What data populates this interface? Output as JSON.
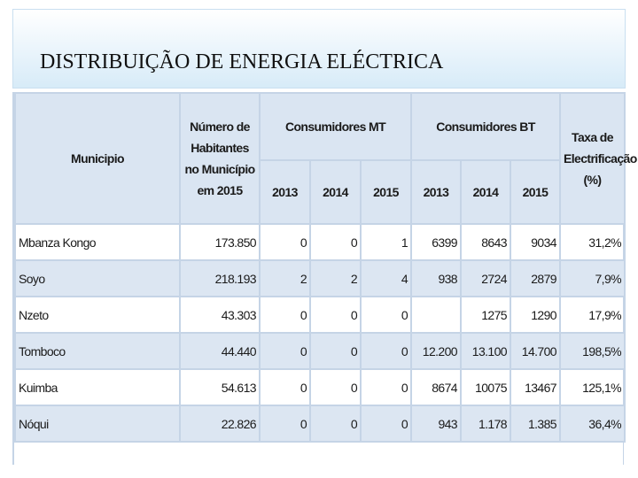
{
  "header": {
    "title": "DISTRIBUIÇÃO DE ENERGIA ELÉCTRICA"
  },
  "table": {
    "columns": {
      "municipio": "Municipio",
      "habitantes": "Número de Habitantes no Município em 2015",
      "mt": "Consumidores MT",
      "bt": "Consumidores BT",
      "taxa": "Taxa de Electrificação (%)",
      "years_mt": [
        "2013",
        "2014",
        "2015"
      ],
      "years_bt": [
        "2013",
        "2014",
        "2015"
      ]
    },
    "rows": [
      [
        "Mbanza Kongo",
        "173.850",
        "0",
        "0",
        "1",
        "6399",
        "8643",
        "9034",
        "31,2%"
      ],
      [
        "Soyo",
        "218.193",
        "2",
        "2",
        "4",
        "938",
        "2724",
        "2879",
        "7,9%"
      ],
      [
        "Nzeto",
        "43.303",
        "0",
        "0",
        "0",
        null,
        "1275",
        "1290",
        "17,9%"
      ],
      [
        "Tomboco",
        "44.440",
        "0",
        "0",
        "0",
        "12.200",
        "13.100",
        "14.700",
        "198,5%"
      ],
      [
        "Kuimba",
        "54.613",
        "0",
        "0",
        "0",
        "8674",
        "10075",
        "13467",
        "125,1%"
      ],
      [
        "Nóqui",
        "22.826",
        "0",
        "0",
        "0",
        "943",
        "1.178",
        "1.385",
        "36,4%"
      ]
    ]
  }
}
